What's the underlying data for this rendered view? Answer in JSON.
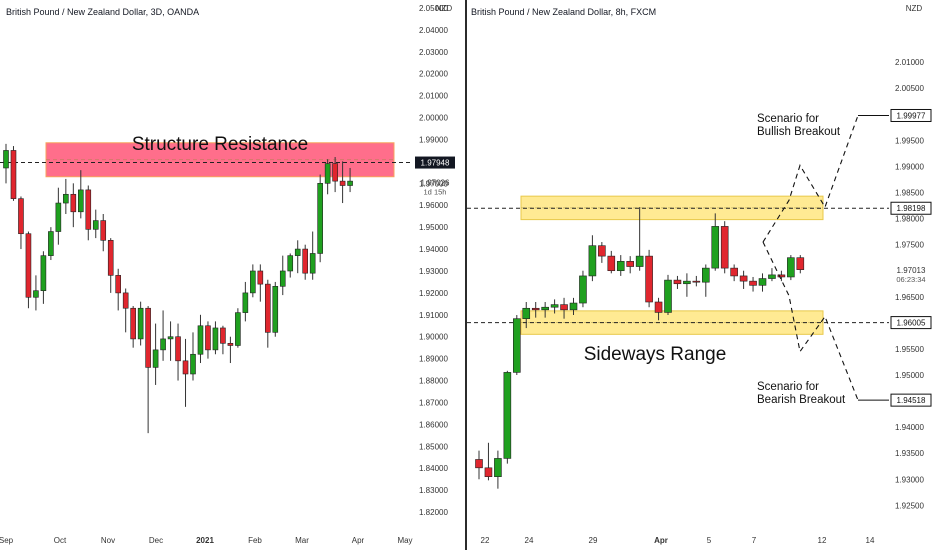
{
  "colors": {
    "up": "#1fa01f",
    "down": "#e0262e",
    "resistance_zone": "#ff5577",
    "range_zone": "#ffe680",
    "axis_text": "#333333",
    "price_tag_bg": "#131722"
  },
  "chart_data": [
    {
      "type": "candlestick",
      "title": "British Pound / New Zealand Dollar, 3D, OANDA",
      "y_axis_unit": "NZD",
      "ylim": [
        1.815,
        2.05
      ],
      "y_ticks": [
        "2.05000",
        "2.04000",
        "2.03000",
        "2.02000",
        "2.01000",
        "2.00000",
        "1.99000",
        "1.98000",
        "1.97000",
        "1.96000",
        "1.95000",
        "1.94000",
        "1.93000",
        "1.92000",
        "1.91000",
        "1.90000",
        "1.89000",
        "1.88000",
        "1.87000",
        "1.86000",
        "1.85000",
        "1.84000",
        "1.83000",
        "1.82000"
      ],
      "x_ticks": [
        "Sep",
        "Oct",
        "Nov",
        "Dec",
        "2021",
        "Feb",
        "Mar",
        "Apr",
        "May"
      ],
      "price_tags": [
        {
          "label": "1.97948",
          "value": 1.97948,
          "style": "dark"
        },
        {
          "label": "1.97026",
          "value": 1.97026,
          "style": "plain",
          "sub": "1d 15h"
        }
      ],
      "zones": [
        {
          "label": "Structure Resistance",
          "from": 1.973,
          "to": 1.9885,
          "color": "resistance"
        }
      ],
      "level_lines": [
        1.97948
      ],
      "candles": [
        [
          1.977,
          1.985,
          1.97,
          1.988
        ],
        [
          1.985,
          1.963,
          1.962,
          1.987
        ],
        [
          1.963,
          1.947,
          1.94,
          1.964
        ],
        [
          1.947,
          1.918,
          1.913,
          1.948
        ],
        [
          1.918,
          1.921,
          1.912,
          1.928
        ],
        [
          1.921,
          1.937,
          1.915,
          1.939
        ],
        [
          1.937,
          1.948,
          1.935,
          1.95
        ],
        [
          1.948,
          1.961,
          1.942,
          1.968
        ],
        [
          1.961,
          1.965,
          1.956,
          1.972
        ],
        [
          1.965,
          1.957,
          1.95,
          1.97
        ],
        [
          1.957,
          1.967,
          1.954,
          1.976
        ],
        [
          1.967,
          1.949,
          1.944,
          1.969
        ],
        [
          1.949,
          1.953,
          1.945,
          1.958
        ],
        [
          1.953,
          1.944,
          1.939,
          1.956
        ],
        [
          1.944,
          1.928,
          1.92,
          1.945
        ],
        [
          1.928,
          1.92,
          1.912,
          1.931
        ],
        [
          1.92,
          1.913,
          1.902,
          1.922
        ],
        [
          1.913,
          1.899,
          1.895,
          1.914
        ],
        [
          1.899,
          1.913,
          1.896,
          1.916
        ],
        [
          1.913,
          1.886,
          1.856,
          1.914
        ],
        [
          1.886,
          1.894,
          1.878,
          1.906
        ],
        [
          1.894,
          1.899,
          1.889,
          1.912
        ],
        [
          1.899,
          1.9,
          1.889,
          1.907
        ],
        [
          1.9,
          1.889,
          1.88,
          1.906
        ],
        [
          1.889,
          1.883,
          1.868,
          1.899
        ],
        [
          1.883,
          1.892,
          1.88,
          1.902
        ],
        [
          1.892,
          1.905,
          1.888,
          1.91
        ],
        [
          1.905,
          1.894,
          1.89,
          1.907
        ],
        [
          1.894,
          1.904,
          1.892,
          1.907
        ],
        [
          1.904,
          1.897,
          1.892,
          1.905
        ],
        [
          1.897,
          1.896,
          1.888,
          1.9
        ],
        [
          1.896,
          1.911,
          1.895,
          1.913
        ],
        [
          1.911,
          1.92,
          1.907,
          1.925
        ],
        [
          1.92,
          1.93,
          1.918,
          1.933
        ],
        [
          1.93,
          1.924,
          1.916,
          1.933
        ],
        [
          1.924,
          1.902,
          1.895,
          1.926
        ],
        [
          1.902,
          1.923,
          1.9,
          1.925
        ],
        [
          1.923,
          1.93,
          1.919,
          1.937
        ],
        [
          1.93,
          1.937,
          1.927,
          1.938
        ],
        [
          1.937,
          1.94,
          1.929,
          1.944
        ],
        [
          1.94,
          1.929,
          1.926,
          1.942
        ],
        [
          1.929,
          1.938,
          1.926,
          1.948
        ],
        [
          1.938,
          1.97,
          1.934,
          1.974
        ],
        [
          1.97,
          1.979,
          1.965,
          1.981
        ],
        [
          1.979,
          1.971,
          1.966,
          1.982
        ],
        [
          1.971,
          1.969,
          1.961,
          1.98
        ],
        [
          1.969,
          1.971,
          1.966,
          1.977
        ]
      ]
    },
    {
      "type": "candlestick",
      "title": "British Pound / New Zealand Dollar, 8h, FXCM",
      "y_axis_unit": "NZD",
      "ylim": [
        1.922,
        2.02
      ],
      "y_ticks": [
        "2.01000",
        "2.00500",
        "1.99500",
        "1.99000",
        "1.98500",
        "1.98000",
        "1.97500",
        "1.96500",
        "1.95500",
        "1.95000",
        "1.94000",
        "1.93500",
        "1.93000",
        "1.92500"
      ],
      "x_ticks": [
        "22",
        "24",
        "29",
        "Apr",
        "5",
        "7",
        "12",
        "14"
      ],
      "price_tags": [
        {
          "label": "1.99977",
          "value": 1.99977,
          "style": "boxed"
        },
        {
          "label": "1.98198",
          "value": 1.98198,
          "style": "boxed"
        },
        {
          "label": "1.97013",
          "value": 1.97013,
          "style": "plain",
          "sub": "06:23:34"
        },
        {
          "label": "1.96005",
          "value": 1.96005,
          "style": "boxed"
        },
        {
          "label": "1.94518",
          "value": 1.94518,
          "style": "boxed"
        }
      ],
      "zones": [
        {
          "label": "",
          "from": 1.9798,
          "to": 1.9843,
          "color": "range"
        },
        {
          "label": "Sideways Range",
          "from": 1.9578,
          "to": 1.9623,
          "color": "range"
        }
      ],
      "level_lines": [
        1.98198,
        1.96005
      ],
      "annotations": [
        {
          "text_lines": [
            "Scenario for",
            "Bullish Breakout"
          ]
        },
        {
          "text_lines": [
            "Scenario for",
            "Bearish Breakout"
          ]
        }
      ],
      "scenario_paths": [
        [
          [
            0,
            1.9755
          ],
          [
            1,
            1.9835
          ],
          [
            2,
            1.9902
          ],
          [
            3,
            1.9822
          ],
          [
            4,
            1.99977
          ]
        ],
        [
          [
            0,
            1.9755
          ],
          [
            1,
            1.9652
          ],
          [
            2,
            1.9545
          ],
          [
            3,
            1.9612
          ],
          [
            4,
            1.94518
          ]
        ]
      ],
      "candles": [
        [
          1.9338,
          1.9322,
          1.93,
          1.9355
        ],
        [
          1.9322,
          1.9305,
          1.9298,
          1.937
        ],
        [
          1.9305,
          1.934,
          1.9282,
          1.9355
        ],
        [
          1.934,
          1.9505,
          1.933,
          1.9508
        ],
        [
          1.9505,
          1.9608,
          1.95,
          1.9615
        ],
        [
          1.9608,
          1.9628,
          1.959,
          1.964
        ],
        [
          1.9628,
          1.9625,
          1.961,
          1.964
        ],
        [
          1.9625,
          1.963,
          1.961,
          1.964
        ],
        [
          1.963,
          1.9635,
          1.9618,
          1.9645
        ],
        [
          1.9635,
          1.9625,
          1.9608,
          1.9648
        ],
        [
          1.9625,
          1.9638,
          1.9615,
          1.9648
        ],
        [
          1.9638,
          1.969,
          1.963,
          1.97
        ],
        [
          1.969,
          1.9748,
          1.968,
          1.9768
        ],
        [
          1.9748,
          1.9728,
          1.9715,
          1.9755
        ],
        [
          1.9728,
          1.97,
          1.9695,
          1.9738
        ],
        [
          1.97,
          1.9718,
          1.969,
          1.973
        ],
        [
          1.9718,
          1.9708,
          1.9695,
          1.9728
        ],
        [
          1.9708,
          1.9728,
          1.97,
          1.9822
        ],
        [
          1.9728,
          1.964,
          1.963,
          1.974
        ],
        [
          1.964,
          1.962,
          1.9605,
          1.9648
        ],
        [
          1.962,
          1.9682,
          1.9615,
          1.9692
        ],
        [
          1.9682,
          1.9675,
          1.9665,
          1.969
        ],
        [
          1.9675,
          1.968,
          1.965,
          1.9695
        ],
        [
          1.968,
          1.9678,
          1.967,
          1.969
        ],
        [
          1.9678,
          1.9705,
          1.965,
          1.9712
        ],
        [
          1.9705,
          1.9785,
          1.97,
          1.981
        ],
        [
          1.9785,
          1.9705,
          1.9695,
          1.9795
        ],
        [
          1.9705,
          1.969,
          1.968,
          1.9712
        ],
        [
          1.969,
          1.968,
          1.9665,
          1.97
        ],
        [
          1.968,
          1.9672,
          1.966,
          1.9688
        ],
        [
          1.9672,
          1.9685,
          1.966,
          1.9695
        ],
        [
          1.9685,
          1.9692,
          1.968,
          1.9705
        ],
        [
          1.9692,
          1.9688,
          1.968,
          1.97
        ],
        [
          1.9688,
          1.9725,
          1.9682,
          1.973
        ],
        [
          1.9725,
          1.9702,
          1.9695,
          1.973
        ]
      ]
    }
  ]
}
